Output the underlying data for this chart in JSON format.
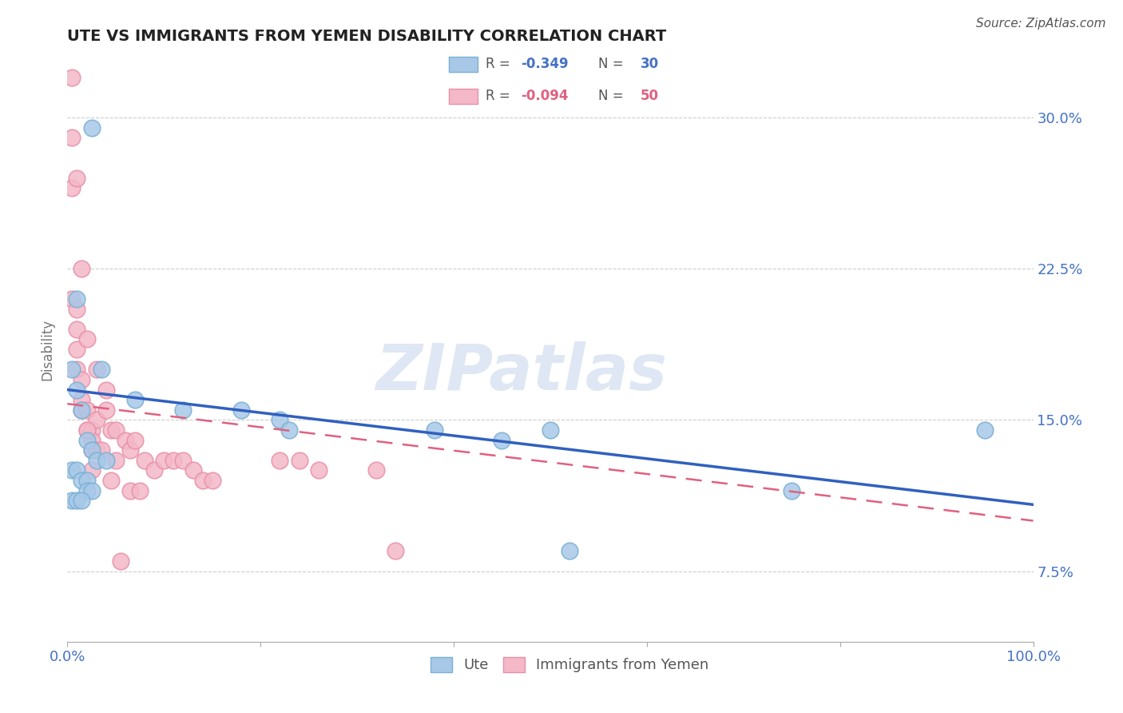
{
  "title": "UTE VS IMMIGRANTS FROM YEMEN DISABILITY CORRELATION CHART",
  "source": "Source: ZipAtlas.com",
  "ylabel": "Disability",
  "watermark": "ZIPatlas",
  "legend_ute_R": "-0.349",
  "legend_ute_N": "30",
  "legend_yemen_R": "-0.094",
  "legend_yemen_N": "50",
  "xlim": [
    0.0,
    1.0
  ],
  "ylim": [
    0.04,
    0.33
  ],
  "yticks": [
    0.075,
    0.15,
    0.225,
    0.3
  ],
  "ytick_labels": [
    "7.5%",
    "15.0%",
    "22.5%",
    "30.0%"
  ],
  "xtick_labels": [
    "0.0%",
    "100.0%"
  ],
  "xtick_vals": [
    0.0,
    1.0
  ],
  "grid_color": "#cccccc",
  "background_color": "#ffffff",
  "ute_color": "#a8c8e8",
  "ute_edge_color": "#7ab0d4",
  "yemen_color": "#f4b8c8",
  "yemen_edge_color": "#e890a8",
  "ute_line_color": "#3060c0",
  "yemen_line_color": "#e06080",
  "title_color": "#222222",
  "axis_tick_color": "#4472c4",
  "ute_x": [
    0.01,
    0.025,
    0.005,
    0.035,
    0.01,
    0.015,
    0.02,
    0.025,
    0.03,
    0.04,
    0.005,
    0.01,
    0.015,
    0.02,
    0.02,
    0.025,
    0.005,
    0.01,
    0.015,
    0.07,
    0.12,
    0.18,
    0.22,
    0.23,
    0.38,
    0.45,
    0.5,
    0.52,
    0.75,
    0.95
  ],
  "ute_y": [
    0.21,
    0.295,
    0.175,
    0.175,
    0.165,
    0.155,
    0.14,
    0.135,
    0.13,
    0.13,
    0.125,
    0.125,
    0.12,
    0.12,
    0.115,
    0.115,
    0.11,
    0.11,
    0.11,
    0.16,
    0.155,
    0.155,
    0.15,
    0.145,
    0.145,
    0.14,
    0.145,
    0.085,
    0.115,
    0.145
  ],
  "yemen_x": [
    0.005,
    0.005,
    0.005,
    0.01,
    0.01,
    0.01,
    0.01,
    0.015,
    0.015,
    0.015,
    0.02,
    0.02,
    0.02,
    0.025,
    0.025,
    0.025,
    0.03,
    0.03,
    0.03,
    0.035,
    0.04,
    0.04,
    0.045,
    0.05,
    0.05,
    0.06,
    0.065,
    0.07,
    0.08,
    0.09,
    0.1,
    0.11,
    0.12,
    0.13,
    0.14,
    0.15,
    0.22,
    0.24,
    0.26,
    0.32,
    0.34,
    0.005,
    0.01,
    0.015,
    0.02,
    0.025,
    0.045,
    0.055,
    0.065,
    0.075
  ],
  "yemen_y": [
    0.29,
    0.265,
    0.21,
    0.205,
    0.195,
    0.185,
    0.175,
    0.17,
    0.16,
    0.155,
    0.19,
    0.155,
    0.145,
    0.145,
    0.14,
    0.135,
    0.175,
    0.15,
    0.135,
    0.135,
    0.165,
    0.155,
    0.145,
    0.145,
    0.13,
    0.14,
    0.135,
    0.14,
    0.13,
    0.125,
    0.13,
    0.13,
    0.13,
    0.125,
    0.12,
    0.12,
    0.13,
    0.13,
    0.125,
    0.125,
    0.085,
    0.32,
    0.27,
    0.225,
    0.145,
    0.125,
    0.12,
    0.08,
    0.115,
    0.115
  ],
  "ute_line_x0": 0.0,
  "ute_line_y0": 0.165,
  "ute_line_x1": 1.0,
  "ute_line_y1": 0.108,
  "yemen_line_x0": 0.0,
  "yemen_line_y0": 0.158,
  "yemen_line_x1": 1.0,
  "yemen_line_y1": 0.1
}
